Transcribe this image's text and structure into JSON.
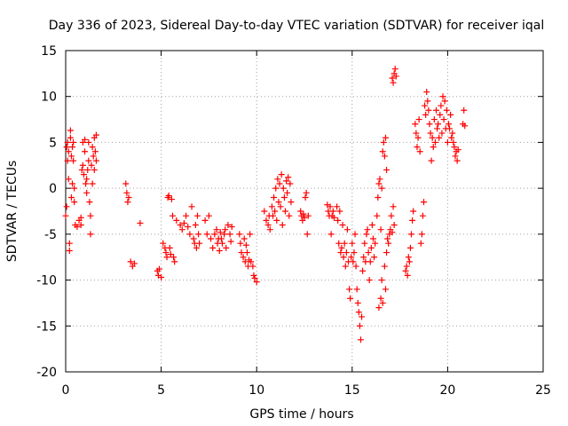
{
  "chart_data": {
    "type": "scatter",
    "title": "Day 336 of 2023, Sidereal Day-to-day VTEC variation (SDTVAR) for receiver iqal",
    "xlabel": "GPS time / hours",
    "ylabel": "SDTVAR / TECUs",
    "xlim": [
      0,
      25
    ],
    "ylim": [
      -20,
      15
    ],
    "xticks": [
      0,
      5,
      10,
      15,
      20,
      25
    ],
    "yticks": [
      -20,
      -15,
      -10,
      -5,
      0,
      5,
      10,
      15
    ],
    "xtick_labels": [
      "0",
      "5",
      "10",
      "15",
      "20",
      "25"
    ],
    "ytick_labels": [
      "-20",
      "-15",
      "-10",
      "-5",
      "0",
      "5",
      "10",
      "15"
    ],
    "grid": true,
    "marker": "+",
    "marker_color": "#ff0000",
    "series": [
      {
        "name": "SDTVAR",
        "points": [
          [
            0.0,
            -3.0
          ],
          [
            0.05,
            -2.0
          ],
          [
            0.05,
            4.5
          ],
          [
            0.1,
            5.0
          ],
          [
            0.1,
            3.0
          ],
          [
            0.15,
            4.0
          ],
          [
            0.15,
            1.0
          ],
          [
            0.2,
            -6.0
          ],
          [
            0.2,
            -6.8
          ],
          [
            0.25,
            6.3
          ],
          [
            0.25,
            5.5
          ],
          [
            0.3,
            3.5
          ],
          [
            0.3,
            -1.0
          ],
          [
            0.35,
            4.5
          ],
          [
            0.35,
            0.5
          ],
          [
            0.4,
            5.0
          ],
          [
            0.4,
            3.0
          ],
          [
            0.45,
            -1.5
          ],
          [
            0.45,
            0.0
          ],
          [
            0.5,
            -4.0
          ],
          [
            0.6,
            -4.2
          ],
          [
            0.7,
            -3.5
          ],
          [
            0.8,
            -4.0
          ],
          [
            0.8,
            -3.2
          ],
          [
            0.85,
            2.0
          ],
          [
            0.9,
            2.5
          ],
          [
            0.9,
            5.0
          ],
          [
            0.95,
            1.5
          ],
          [
            1.0,
            5.3
          ],
          [
            1.0,
            4.0
          ],
          [
            1.05,
            0.5
          ],
          [
            1.1,
            1.0
          ],
          [
            1.1,
            -0.5
          ],
          [
            1.15,
            2.0
          ],
          [
            1.2,
            3.0
          ],
          [
            1.2,
            5.0
          ],
          [
            1.25,
            -1.5
          ],
          [
            1.3,
            -5.0
          ],
          [
            1.3,
            -3.0
          ],
          [
            1.35,
            2.5
          ],
          [
            1.4,
            4.5
          ],
          [
            1.4,
            0.5
          ],
          [
            1.45,
            3.5
          ],
          [
            1.5,
            2.0
          ],
          [
            1.5,
            5.5
          ],
          [
            1.55,
            4.0
          ],
          [
            1.6,
            5.8
          ],
          [
            1.6,
            3.0
          ],
          [
            3.15,
            0.5
          ],
          [
            3.2,
            -0.5
          ],
          [
            3.25,
            -1.5
          ],
          [
            3.3,
            -1.0
          ],
          [
            3.4,
            -8.0
          ],
          [
            3.5,
            -8.5
          ],
          [
            3.6,
            -8.2
          ],
          [
            3.9,
            -3.8
          ],
          [
            4.8,
            -9.0
          ],
          [
            4.85,
            -9.5
          ],
          [
            4.9,
            -8.8
          ],
          [
            5.0,
            -9.7
          ],
          [
            5.1,
            -6.0
          ],
          [
            5.2,
            -6.5
          ],
          [
            5.25,
            -7.0
          ],
          [
            5.3,
            -7.5
          ],
          [
            5.35,
            -1.0
          ],
          [
            5.4,
            -0.8
          ],
          [
            5.45,
            -6.5
          ],
          [
            5.5,
            -7.2
          ],
          [
            5.55,
            -1.2
          ],
          [
            5.6,
            -3.0
          ],
          [
            5.65,
            -7.5
          ],
          [
            5.7,
            -8.0
          ],
          [
            5.8,
            -3.5
          ],
          [
            6.0,
            -4.0
          ],
          [
            6.1,
            -4.5
          ],
          [
            6.2,
            -3.8
          ],
          [
            6.3,
            -3.0
          ],
          [
            6.4,
            -4.2
          ],
          [
            6.5,
            -5.0
          ],
          [
            6.6,
            -2.0
          ],
          [
            6.7,
            -5.5
          ],
          [
            6.75,
            -6.0
          ],
          [
            6.8,
            -4.0
          ],
          [
            6.85,
            -6.5
          ],
          [
            6.9,
            -3.0
          ],
          [
            6.95,
            -5.0
          ],
          [
            7.0,
            -6.0
          ],
          [
            7.3,
            -3.5
          ],
          [
            7.4,
            -5.0
          ],
          [
            7.5,
            -3.0
          ],
          [
            7.6,
            -5.5
          ],
          [
            7.7,
            -6.5
          ],
          [
            7.8,
            -5.0
          ],
          [
            7.9,
            -4.5
          ],
          [
            7.95,
            -6.0
          ],
          [
            8.0,
            -5.5
          ],
          [
            8.05,
            -6.8
          ],
          [
            8.1,
            -4.8
          ],
          [
            8.15,
            -5.5
          ],
          [
            8.2,
            -6.0
          ],
          [
            8.3,
            -5.0
          ],
          [
            8.35,
            -4.5
          ],
          [
            8.4,
            -6.5
          ],
          [
            8.5,
            -4.0
          ],
          [
            8.6,
            -5.0
          ],
          [
            8.65,
            -5.8
          ],
          [
            8.7,
            -4.2
          ],
          [
            9.1,
            -5.0
          ],
          [
            9.15,
            -6.0
          ],
          [
            9.2,
            -7.0
          ],
          [
            9.3,
            -7.5
          ],
          [
            9.35,
            -5.5
          ],
          [
            9.4,
            -8.0
          ],
          [
            9.45,
            -6.2
          ],
          [
            9.5,
            -7.0
          ],
          [
            9.55,
            -8.5
          ],
          [
            9.6,
            -7.8
          ],
          [
            9.65,
            -5.0
          ],
          [
            9.7,
            -8.0
          ],
          [
            9.8,
            -8.5
          ],
          [
            9.85,
            -9.5
          ],
          [
            9.9,
            -9.8
          ],
          [
            10.0,
            -10.2
          ],
          [
            10.4,
            -2.5
          ],
          [
            10.5,
            -3.5
          ],
          [
            10.6,
            -4.0
          ],
          [
            10.65,
            -3.0
          ],
          [
            10.7,
            -4.5
          ],
          [
            10.8,
            -2.0
          ],
          [
            10.85,
            -3.0
          ],
          [
            10.9,
            -1.0
          ],
          [
            10.95,
            -2.5
          ],
          [
            11.0,
            0.0
          ],
          [
            11.05,
            -3.5
          ],
          [
            11.1,
            1.0
          ],
          [
            11.15,
            -1.5
          ],
          [
            11.2,
            0.5
          ],
          [
            11.25,
            -2.0
          ],
          [
            11.3,
            1.5
          ],
          [
            11.35,
            -4.0
          ],
          [
            11.4,
            0.0
          ],
          [
            11.45,
            -1.0
          ],
          [
            11.5,
            -2.5
          ],
          [
            11.55,
            0.8
          ],
          [
            11.6,
            -0.5
          ],
          [
            11.65,
            1.2
          ],
          [
            11.7,
            -3.0
          ],
          [
            11.75,
            0.5
          ],
          [
            11.8,
            -1.5
          ],
          [
            12.3,
            -2.5
          ],
          [
            12.35,
            -3.0
          ],
          [
            12.4,
            -3.5
          ],
          [
            12.45,
            -2.8
          ],
          [
            12.5,
            -3.2
          ],
          [
            12.55,
            -1.0
          ],
          [
            12.6,
            -0.5
          ],
          [
            12.65,
            -5.0
          ],
          [
            12.7,
            -3.0
          ],
          [
            13.7,
            -1.8
          ],
          [
            13.75,
            -2.5
          ],
          [
            13.8,
            -3.0
          ],
          [
            13.85,
            -2.0
          ],
          [
            13.9,
            -5.0
          ],
          [
            13.95,
            -3.0
          ],
          [
            14.0,
            -2.5
          ],
          [
            14.05,
            -3.2
          ],
          [
            14.2,
            -2.0
          ],
          [
            14.25,
            -3.5
          ],
          [
            14.3,
            -6.0
          ],
          [
            14.35,
            -2.5
          ],
          [
            14.4,
            -7.0
          ],
          [
            14.45,
            -6.5
          ],
          [
            14.5,
            -4.0
          ],
          [
            14.55,
            -7.5
          ],
          [
            14.6,
            -6.0
          ],
          [
            14.65,
            -8.5
          ],
          [
            14.7,
            -7.0
          ],
          [
            14.75,
            -4.5
          ],
          [
            14.8,
            -8.0
          ],
          [
            14.85,
            -11.0
          ],
          [
            14.9,
            -12.0
          ],
          [
            14.95,
            -7.5
          ],
          [
            15.0,
            -6.0
          ],
          [
            15.05,
            -8.0
          ],
          [
            15.1,
            -7.0
          ],
          [
            15.15,
            -5.0
          ],
          [
            15.2,
            -8.5
          ],
          [
            15.25,
            -11.0
          ],
          [
            15.3,
            -12.5
          ],
          [
            15.35,
            -13.5
          ],
          [
            15.4,
            -15.0
          ],
          [
            15.45,
            -16.5
          ],
          [
            15.5,
            -14.0
          ],
          [
            15.55,
            -9.0
          ],
          [
            15.6,
            -7.5
          ],
          [
            15.65,
            -6.0
          ],
          [
            15.7,
            -8.0
          ],
          [
            15.75,
            -5.0
          ],
          [
            15.8,
            -4.5
          ],
          [
            15.85,
            -7.0
          ],
          [
            15.9,
            -10.0
          ],
          [
            15.95,
            -8.0
          ],
          [
            16.0,
            -6.5
          ],
          [
            16.05,
            -4.0
          ],
          [
            16.1,
            -5.5
          ],
          [
            16.15,
            -7.5
          ],
          [
            16.2,
            -6.0
          ],
          [
            16.3,
            -3.0
          ],
          [
            16.35,
            -1.0
          ],
          [
            16.4,
            0.5
          ],
          [
            16.45,
            1.0
          ],
          [
            16.5,
            -4.5
          ],
          [
            16.55,
            0.0
          ],
          [
            16.6,
            4.0
          ],
          [
            16.65,
            5.0
          ],
          [
            16.7,
            3.5
          ],
          [
            16.75,
            5.5
          ],
          [
            16.8,
            2.0
          ],
          [
            16.4,
            -13.0
          ],
          [
            16.5,
            -12.0
          ],
          [
            16.55,
            -10.0
          ],
          [
            16.6,
            -12.5
          ],
          [
            16.7,
            -8.5
          ],
          [
            16.75,
            -11.0
          ],
          [
            16.8,
            -7.0
          ],
          [
            16.85,
            -5.5
          ],
          [
            16.9,
            -6.0
          ],
          [
            16.95,
            -5.0
          ],
          [
            17.0,
            -4.5
          ],
          [
            17.05,
            -3.0
          ],
          [
            17.1,
            -4.8
          ],
          [
            17.15,
            -2.0
          ],
          [
            17.2,
            -4.0
          ],
          [
            17.1,
            12.0
          ],
          [
            17.15,
            11.5
          ],
          [
            17.2,
            12.5
          ],
          [
            17.25,
            13.0
          ],
          [
            17.3,
            12.2
          ],
          [
            17.8,
            -9.0
          ],
          [
            17.85,
            -8.5
          ],
          [
            17.9,
            -9.5
          ],
          [
            17.95,
            -7.5
          ],
          [
            18.0,
            -8.0
          ],
          [
            18.05,
            -6.5
          ],
          [
            18.1,
            -5.0
          ],
          [
            18.15,
            -3.5
          ],
          [
            18.2,
            -2.5
          ],
          [
            18.3,
            7.0
          ],
          [
            18.35,
            6.0
          ],
          [
            18.4,
            4.5
          ],
          [
            18.45,
            5.5
          ],
          [
            18.5,
            7.5
          ],
          [
            18.55,
            4.0
          ],
          [
            18.6,
            -6.0
          ],
          [
            18.65,
            -5.0
          ],
          [
            18.7,
            -3.0
          ],
          [
            18.75,
            -1.5
          ],
          [
            18.8,
            9.0
          ],
          [
            18.85,
            8.0
          ],
          [
            18.9,
            10.5
          ],
          [
            18.95,
            9.5
          ],
          [
            19.0,
            8.5
          ],
          [
            19.05,
            7.0
          ],
          [
            19.1,
            6.0
          ],
          [
            19.15,
            3.0
          ],
          [
            19.2,
            5.5
          ],
          [
            19.25,
            4.5
          ],
          [
            19.3,
            7.5
          ],
          [
            19.35,
            5.0
          ],
          [
            19.4,
            8.5
          ],
          [
            19.45,
            6.5
          ],
          [
            19.5,
            7.0
          ],
          [
            19.55,
            5.5
          ],
          [
            19.6,
            8.0
          ],
          [
            19.65,
            9.0
          ],
          [
            19.7,
            6.0
          ],
          [
            19.75,
            10.0
          ],
          [
            19.8,
            7.5
          ],
          [
            19.85,
            9.5
          ],
          [
            19.9,
            6.5
          ],
          [
            19.95,
            8.5
          ],
          [
            20.0,
            5.0
          ],
          [
            20.05,
            7.0
          ],
          [
            20.1,
            6.5
          ],
          [
            20.15,
            8.0
          ],
          [
            20.2,
            5.5
          ],
          [
            20.25,
            6.0
          ],
          [
            20.3,
            5.0
          ],
          [
            20.35,
            4.5
          ],
          [
            20.4,
            3.5
          ],
          [
            20.45,
            4.0
          ],
          [
            20.5,
            3.0
          ],
          [
            20.55,
            4.2
          ],
          [
            20.8,
            7.0
          ],
          [
            20.85,
            8.5
          ],
          [
            20.9,
            6.8
          ]
        ]
      }
    ]
  }
}
